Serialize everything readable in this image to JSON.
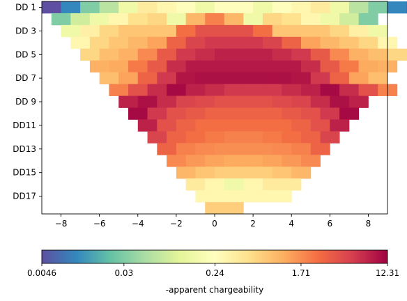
{
  "chart_data": {
    "type": "heatmap",
    "title": "",
    "xlabel": "",
    "ylabel": "",
    "xlim": [
      -9,
      9
    ],
    "x_ticks": [
      -8,
      -6,
      -4,
      -2,
      0,
      2,
      4,
      6,
      8
    ],
    "x_tick_labels": [
      "−8",
      "−6",
      "−4",
      "−2",
      "0",
      "2",
      "4",
      "6",
      "8"
    ],
    "y_tick_levels": [
      1,
      3,
      5,
      7,
      9,
      11,
      13,
      15,
      17
    ],
    "y_tick_labels": [
      "DD 1",
      "DD 3",
      "DD 5",
      "DD 7",
      "DD 9",
      "DD11",
      "DD13",
      "DD15",
      "DD17"
    ],
    "levels": 18,
    "cell_width": 1,
    "first_center": -8.5,
    "colorbar": {
      "label": "-apparent chargeability",
      "scale": "log",
      "min": 0.0046,
      "max": 12.31,
      "ticks": [
        0.0046,
        0.03,
        0.24,
        1.71,
        12.31
      ],
      "tick_labels": [
        "0.0046",
        "0.03",
        "0.24",
        "1.71",
        "12.31"
      ],
      "colormap": "Spectral_r",
      "stops": [
        "#5e4fa2",
        "#3288bd",
        "#66c2a5",
        "#abdda4",
        "#e6f598",
        "#ffffbf",
        "#fee08b",
        "#fdae61",
        "#f46d43",
        "#d53e4f",
        "#9e0142"
      ]
    },
    "rows": [
      {
        "level": 1,
        "values": [
          0.0046,
          0.01,
          0.03,
          0.06,
          0.15,
          0.4,
          0.3,
          0.25,
          0.15,
          0.25,
          0.25,
          0.15,
          0.25,
          0.3,
          0.4,
          0.15,
          0.06,
          0.03,
          0.01,
          0.0046
        ]
      },
      {
        "level": 2,
        "values": [
          0.03,
          0.08,
          0.15,
          0.3,
          0.5,
          0.6,
          0.15,
          1.0,
          2.0,
          1.0,
          0.15,
          0.6,
          0.5,
          0.3,
          0.15,
          0.08,
          0.03
        ]
      },
      {
        "level": 3,
        "values": [
          0.15,
          0.35,
          0.6,
          0.8,
          0.8,
          0.8,
          2.5,
          4.0,
          4.0,
          4.0,
          2.5,
          0.8,
          0.8,
          0.8,
          0.6,
          0.35,
          0.15
        ]
      },
      {
        "level": 4,
        "values": [
          0.3,
          0.6,
          0.8,
          1.0,
          1.3,
          3.0,
          5.0,
          6.0,
          6.0,
          6.0,
          5.0,
          3.0,
          1.3,
          1.0,
          0.8,
          0.6,
          0.3
        ]
      },
      {
        "level": 5,
        "values": [
          0.6,
          0.9,
          1.1,
          1.8,
          3.5,
          6.0,
          7.0,
          8.0,
          8.0,
          8.0,
          7.0,
          6.0,
          3.5,
          1.8,
          1.1,
          0.9,
          0.6
        ]
      },
      {
        "level": 6,
        "values": [
          1.1,
          1.2,
          2.2,
          3.5,
          7.0,
          9.0,
          9.0,
          9.0,
          9.0,
          9.0,
          9.0,
          7.0,
          3.5,
          2.2,
          1.2,
          1.1
        ]
      },
      {
        "level": 7,
        "values": [
          0.9,
          1.3,
          3.0,
          6.0,
          9.5,
          10.0,
          10.0,
          10.0,
          10.0,
          10.0,
          9.5,
          6.0,
          3.0,
          1.3,
          0.9
        ]
      },
      {
        "level": 8,
        "values": [
          2.0,
          4.0,
          7.0,
          11.0,
          8.0,
          7.0,
          6.0,
          6.0,
          6.0,
          7.0,
          8.0,
          11.0,
          7.0,
          4.0,
          2.0
        ]
      },
      {
        "level": 9,
        "values": [
          8.0,
          10.0,
          7.0,
          5.0,
          4.5,
          4.0,
          4.0,
          4.0,
          4.5,
          5.0,
          7.0,
          10.0,
          8.0
        ]
      },
      {
        "level": 10,
        "values": [
          11.0,
          6.0,
          4.0,
          3.5,
          3.0,
          3.0,
          3.0,
          3.0,
          3.5,
          4.0,
          6.0,
          11.0
        ]
      },
      {
        "level": 11,
        "values": [
          8.0,
          4.0,
          3.0,
          2.5,
          2.5,
          2.5,
          2.5,
          2.5,
          3.0,
          4.0,
          8.0
        ]
      },
      {
        "level": 12,
        "values": [
          5.0,
          3.0,
          2.5,
          2.2,
          2.0,
          2.0,
          2.2,
          2.5,
          3.0,
          5.0
        ]
      },
      {
        "level": 13,
        "values": [
          3.0,
          2.0,
          1.8,
          1.7,
          1.7,
          1.7,
          1.8,
          2.0,
          3.0
        ]
      },
      {
        "level": 14,
        "values": [
          1.8,
          1.5,
          1.3,
          1.2,
          1.2,
          1.3,
          1.5,
          1.8
        ]
      },
      {
        "level": 15,
        "values": [
          1.0,
          0.8,
          0.7,
          0.7,
          0.7,
          0.8,
          1.0
        ]
      },
      {
        "level": 16,
        "values": [
          0.4,
          0.3,
          0.15,
          0.3,
          0.4,
          0.4
        ]
      },
      {
        "level": 17,
        "values": [
          0.3,
          0.3,
          0.3,
          0.3,
          0.3
        ]
      },
      {
        "level": 18,
        "values": [
          0.7,
          0.7
        ]
      }
    ]
  }
}
